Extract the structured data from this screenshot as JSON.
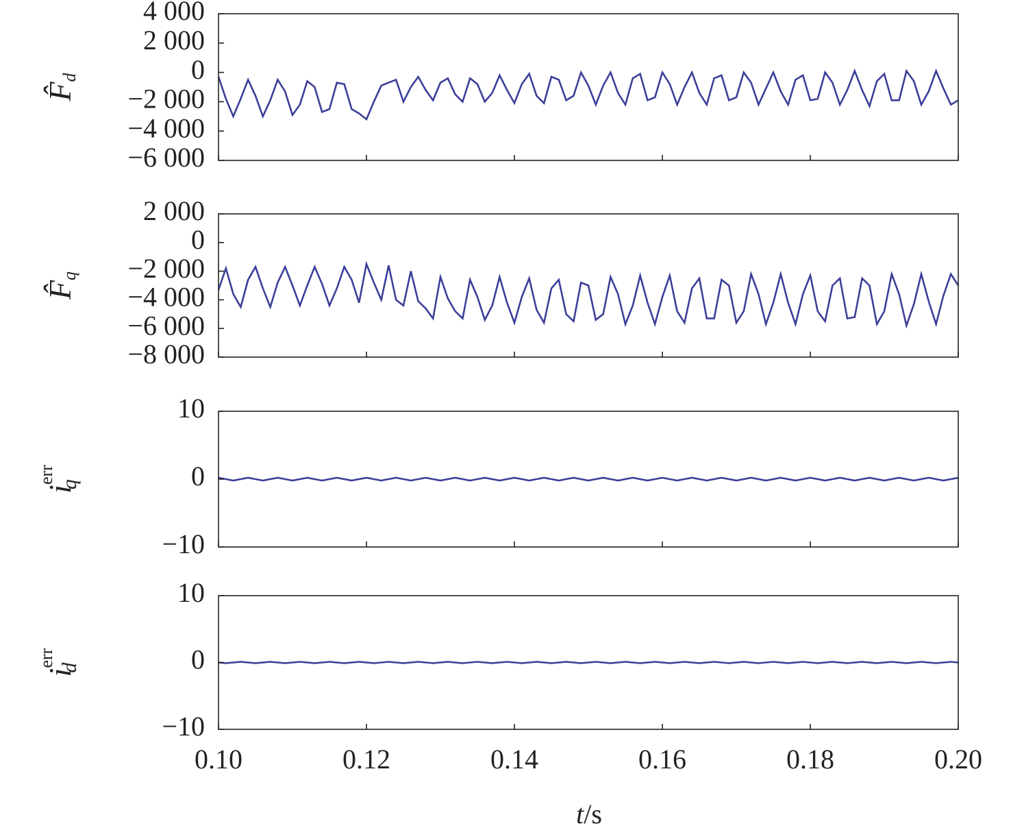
{
  "chart_data": {
    "type": "line",
    "color": "#3b3f98",
    "x": [
      0.1,
      0.101,
      0.102,
      0.103,
      0.104,
      0.105,
      0.106,
      0.107,
      0.108,
      0.109,
      0.11,
      0.111,
      0.112,
      0.113,
      0.114,
      0.115,
      0.116,
      0.117,
      0.118,
      0.119,
      0.12,
      0.121,
      0.122,
      0.123,
      0.124,
      0.125,
      0.126,
      0.127,
      0.128,
      0.129,
      0.13,
      0.131,
      0.132,
      0.133,
      0.134,
      0.135,
      0.136,
      0.137,
      0.138,
      0.139,
      0.14,
      0.141,
      0.142,
      0.143,
      0.144,
      0.145,
      0.146,
      0.147,
      0.148,
      0.149,
      0.15,
      0.151,
      0.152,
      0.153,
      0.154,
      0.155,
      0.156,
      0.157,
      0.158,
      0.159,
      0.16,
      0.161,
      0.162,
      0.163,
      0.164,
      0.165,
      0.166,
      0.167,
      0.168,
      0.169,
      0.17,
      0.171,
      0.172,
      0.173,
      0.174,
      0.175,
      0.176,
      0.177,
      0.178,
      0.179,
      0.18,
      0.181,
      0.182,
      0.183,
      0.184,
      0.185,
      0.186,
      0.187,
      0.188,
      0.189,
      0.19,
      0.191,
      0.192,
      0.193,
      0.194,
      0.195,
      0.196,
      0.197,
      0.198,
      0.199,
      0.2
    ],
    "xlim": [
      0.1,
      0.2
    ],
    "xticks": [
      {
        "value": 0.1,
        "label": "0.10"
      },
      {
        "value": 0.12,
        "label": "0.12"
      },
      {
        "value": 0.14,
        "label": "0.14"
      },
      {
        "value": 0.16,
        "label": "0.16"
      },
      {
        "value": 0.18,
        "label": "0.18"
      },
      {
        "value": 0.2,
        "label": "0.20"
      }
    ],
    "xlabel": {
      "main": "t",
      "rest": "/s"
    },
    "panels": [
      {
        "ylabel": {
          "main": "F̂",
          "sub": "d"
        },
        "ylim": [
          -6000,
          4000
        ],
        "yticks": [
          {
            "value": 4000,
            "label": "4 000"
          },
          {
            "value": 2000,
            "label": "2 000"
          },
          0,
          {
            "value": -2000,
            "label": "−2 000"
          },
          {
            "value": -4000,
            "label": "−4 000"
          },
          {
            "value": -6000,
            "label": "−6 000"
          }
        ],
        "series": [
          {
            "values": [
              -300,
              -1800,
              -3000,
              -1800,
              -500,
              -1600,
              -3000,
              -1900,
              -500,
              -1300,
              -2900,
              -2200,
              -600,
              -1000,
              -2700,
              -2500,
              -700,
              -800,
              -2500,
              -2800,
              -3200,
              -2000,
              -900,
              -700,
              -500,
              -2000,
              -1000,
              -300,
              -1200,
              -1900,
              -700,
              -400,
              -1500,
              -2000,
              -400,
              -800,
              -2000,
              -1400,
              -200,
              -1200,
              -2100,
              -800,
              -100,
              -1600,
              -2100,
              -300,
              -500,
              -1900,
              -1600,
              0,
              -900,
              -2200,
              -900,
              0,
              -1400,
              -2200,
              -400,
              -100,
              -1900,
              -1700,
              0,
              -800,
              -2200,
              -1000,
              0,
              -1400,
              -2200,
              -400,
              -200,
              -1900,
              -1700,
              0,
              -700,
              -2200,
              -1100,
              0,
              -1300,
              -2200,
              -500,
              -200,
              -1900,
              -1800,
              0,
              -700,
              -2200,
              -1200,
              100,
              -1200,
              -2300,
              -600,
              -100,
              -1900,
              -1900,
              100,
              -600,
              -2200,
              -1300,
              100,
              -1100,
              -2200,
              -1900
            ]
          }
        ]
      },
      {
        "ylabel": {
          "main": "F̂",
          "sub": "q"
        },
        "ylim": [
          -8000,
          2000
        ],
        "yticks": [
          {
            "value": 2000,
            "label": "2 000"
          },
          0,
          {
            "value": -2000,
            "label": "−2 000"
          },
          {
            "value": -4000,
            "label": "−4 000"
          },
          {
            "value": -6000,
            "label": "−6 000"
          },
          {
            "value": -8000,
            "label": "−8 000"
          }
        ],
        "series": [
          {
            "values": [
              -3300,
              -1800,
              -3600,
              -4500,
              -2600,
              -1700,
              -3200,
              -4500,
              -2800,
              -1700,
              -3000,
              -4400,
              -3000,
              -1700,
              -2900,
              -4400,
              -3200,
              -1700,
              -2600,
              -4200,
              -1500,
              -2800,
              -4000,
              -1600,
              -4000,
              -4400,
              -2000,
              -4100,
              -4600,
              -5300,
              -2400,
              -3900,
              -4800,
              -5300,
              -2600,
              -3800,
              -5400,
              -4400,
              -2400,
              -4200,
              -5600,
              -3800,
              -2500,
              -4700,
              -5600,
              -3200,
              -2600,
              -5000,
              -5500,
              -2800,
              -3000,
              -5400,
              -5000,
              -2400,
              -3600,
              -5700,
              -4400,
              -2300,
              -4200,
              -5700,
              -3800,
              -2300,
              -4800,
              -5600,
              -3200,
              -2500,
              -5300,
              -5300,
              -2600,
              -3000,
              -5600,
              -4800,
              -2200,
              -3600,
              -5700,
              -4200,
              -2200,
              -4200,
              -5700,
              -3600,
              -2300,
              -4800,
              -5500,
              -3000,
              -2500,
              -5300,
              -5200,
              -2500,
              -3000,
              -5700,
              -4800,
              -2200,
              -3600,
              -5800,
              -4300,
              -2200,
              -4100,
              -5700,
              -3700,
              -2200,
              -3000
            ]
          }
        ]
      },
      {
        "ylabel": {
          "main": "i",
          "sub": "q",
          "sup": "err"
        },
        "ylim": [
          -10,
          10
        ],
        "yticks": [
          10,
          0,
          {
            "value": -10,
            "label": "−10"
          }
        ],
        "series": [
          {
            "values": [
              0.2,
              0,
              -0.2,
              0,
              0.2,
              0,
              -0.2,
              0,
              0.2,
              0,
              -0.2,
              0,
              0.2,
              0,
              -0.2,
              0,
              0.2,
              0,
              -0.2,
              0,
              0.2,
              0,
              -0.2,
              0,
              0.2,
              0,
              -0.2,
              0,
              0.2,
              0,
              -0.2,
              0,
              0.2,
              0,
              -0.2,
              0,
              0.2,
              0,
              -0.2,
              0,
              0.2,
              0,
              -0.2,
              0,
              0.2,
              0,
              -0.2,
              0,
              0.2,
              0,
              -0.2,
              0,
              0.2,
              0,
              -0.2,
              0,
              0.2,
              0,
              -0.2,
              0,
              0.2,
              0,
              -0.2,
              0,
              0.2,
              0,
              -0.2,
              0,
              0.2,
              0,
              -0.2,
              0,
              0.2,
              0,
              -0.2,
              0,
              0.2,
              0,
              -0.2,
              0,
              0.2,
              0,
              -0.2,
              0,
              0.2,
              0,
              -0.2,
              0,
              0.2,
              0,
              -0.2,
              0,
              0.2,
              0,
              -0.2,
              0,
              0.2,
              0,
              -0.2,
              0,
              0.2
            ]
          }
        ]
      },
      {
        "ylabel": {
          "main": "i",
          "sub": "d",
          "sup": "err"
        },
        "ylim": [
          -10,
          10
        ],
        "yticks": [
          10,
          0,
          {
            "value": -10,
            "label": "−10"
          }
        ],
        "series": [
          {
            "values": [
              0,
              -0.1,
              0,
              0.1,
              0,
              -0.1,
              0,
              0.1,
              0,
              -0.1,
              0,
              0.1,
              0,
              -0.1,
              0,
              0.1,
              0,
              -0.1,
              0,
              0.1,
              0,
              -0.1,
              0,
              0.1,
              0,
              -0.1,
              0,
              0.1,
              0,
              -0.1,
              0,
              0.1,
              0,
              -0.1,
              0,
              0.1,
              0,
              -0.1,
              0,
              0.1,
              0,
              -0.1,
              0,
              0.1,
              0,
              -0.1,
              0,
              0.1,
              0,
              -0.1,
              0,
              0.1,
              0,
              -0.1,
              0,
              0.1,
              0,
              -0.1,
              0,
              0.1,
              0,
              -0.1,
              0,
              0.1,
              0,
              -0.1,
              0,
              0.1,
              0,
              -0.1,
              0,
              0.1,
              0,
              -0.1,
              0,
              0.1,
              0,
              -0.1,
              0,
              0.1,
              0,
              -0.1,
              0,
              0.1,
              0,
              -0.1,
              0,
              0.1,
              0,
              -0.1,
              0,
              0.1,
              0,
              -0.1,
              0,
              0.1,
              0,
              -0.1,
              0,
              0.1,
              0
            ]
          }
        ]
      }
    ]
  }
}
